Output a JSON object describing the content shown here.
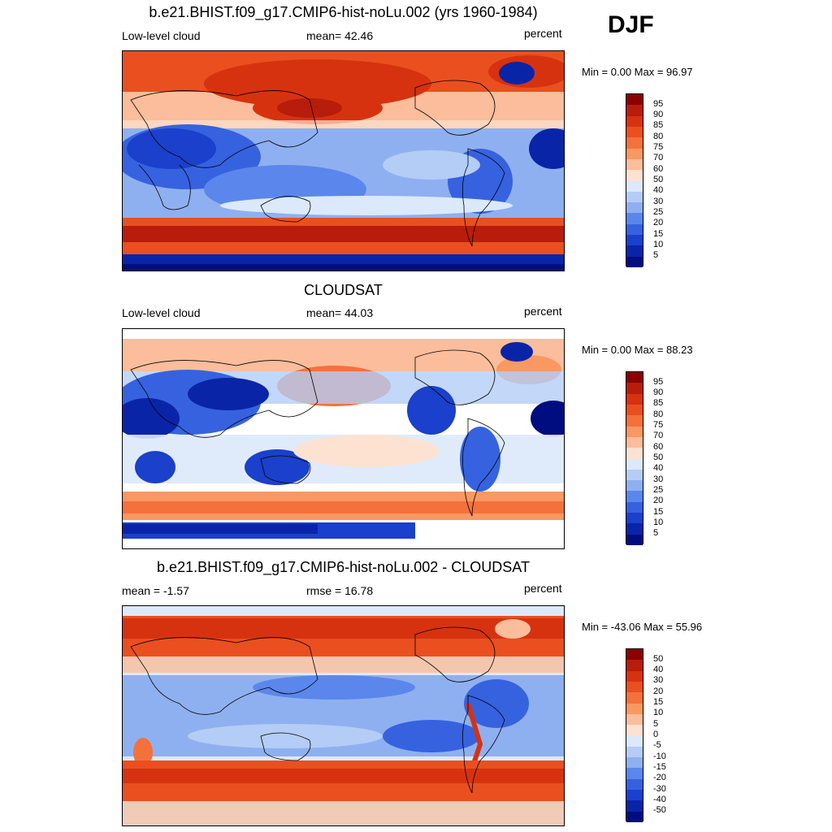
{
  "season": "DJF",
  "panels": [
    {
      "id": "model",
      "title": "b.e21.BHIST.f09_g17.CMIP6-hist-noLu.002 (yrs 1960-1984)",
      "left_label": "Low-level cloud",
      "center_label": "mean=  42.46",
      "right_label": "percent",
      "minmax": "Min =   0.00 Max =  96.97",
      "colorbar": {
        "levels": [
          "95",
          "90",
          "85",
          "80",
          "75",
          "70",
          "60",
          "50",
          "40",
          "30",
          "25",
          "20",
          "15",
          "10",
          "5"
        ],
        "colors": [
          "#8b0000",
          "#b81c0a",
          "#d63210",
          "#ea4f20",
          "#f4713c",
          "#f89862",
          "#fbbd9b",
          "#fde2d2",
          "#dbe9fb",
          "#b4cdf6",
          "#8fb0f0",
          "#5b87ec",
          "#3662e0",
          "#1a40cc",
          "#0a24a8",
          "#000d80"
        ]
      }
    },
    {
      "id": "obs",
      "title": "CLOUDSAT",
      "left_label": "Low-level cloud",
      "center_label": "mean=  44.03",
      "right_label": "percent",
      "minmax": "Min =   0.00 Max =  88.23",
      "colorbar": {
        "levels": [
          "95",
          "90",
          "85",
          "80",
          "75",
          "70",
          "60",
          "50",
          "40",
          "30",
          "25",
          "20",
          "15",
          "10",
          "5"
        ],
        "colors": [
          "#8b0000",
          "#b81c0a",
          "#d63210",
          "#ea4f20",
          "#f4713c",
          "#f89862",
          "#fbbd9b",
          "#fde2d2",
          "#dbe9fb",
          "#b4cdf6",
          "#8fb0f0",
          "#5b87ec",
          "#3662e0",
          "#1a40cc",
          "#0a24a8",
          "#000d80"
        ]
      }
    },
    {
      "id": "diff",
      "title": "b.e21.BHIST.f09_g17.CMIP6-hist-noLu.002 - CLOUDSAT",
      "left_label": "mean =  -1.57",
      "center_label": "rmse =  16.78",
      "right_label": "percent",
      "minmax": "Min = -43.06 Max =  55.96",
      "colorbar": {
        "levels": [
          "50",
          "40",
          "30",
          "20",
          "15",
          "10",
          "5",
          "0",
          "-5",
          "-10",
          "-15",
          "-20",
          "-30",
          "-40",
          "-50"
        ],
        "colors": [
          "#8b0000",
          "#b81c0a",
          "#d63210",
          "#ea4f20",
          "#f4713c",
          "#f89862",
          "#fbbd9b",
          "#fde2d2",
          "#dbe9fb",
          "#b4cdf6",
          "#8fb0f0",
          "#5b87ec",
          "#3662e0",
          "#1a40cc",
          "#0a24a8",
          "#000d80"
        ]
      }
    }
  ]
}
